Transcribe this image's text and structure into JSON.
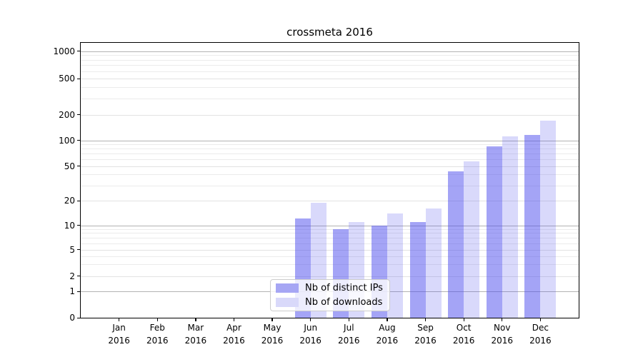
{
  "chart_data": {
    "type": "bar",
    "title": "crossmeta 2016",
    "x_categories": [
      "Jan",
      "Feb",
      "Mar",
      "Apr",
      "May",
      "Jun",
      "Jul",
      "Aug",
      "Sep",
      "Oct",
      "Nov",
      "Dec"
    ],
    "x_year_label": "2016",
    "series": [
      {
        "name": "Nb of distinct IPs",
        "legend_color": "#a6a6f4",
        "fill": "rgba(80,80,238,0.52)",
        "values": [
          0,
          0,
          0,
          0,
          0,
          12,
          9,
          10,
          11,
          43,
          85,
          116
        ]
      },
      {
        "name": "Nb of downloads",
        "legend_color": "#d9d9fa",
        "fill": "rgba(80,80,238,0.22)",
        "values": [
          0,
          0,
          0,
          0,
          0,
          19,
          11,
          14,
          16,
          57,
          112,
          170
        ]
      }
    ],
    "y_ticks": [
      0,
      1,
      2,
      5,
      10,
      20,
      50,
      100,
      200,
      500,
      1000
    ],
    "y_scale": "symlog",
    "ylim": [
      0,
      1250
    ],
    "grid": true,
    "legend_position": "lower center",
    "accent_grid_color": "#b2b2b2",
    "minor_grid_color": "#ebebeb"
  }
}
